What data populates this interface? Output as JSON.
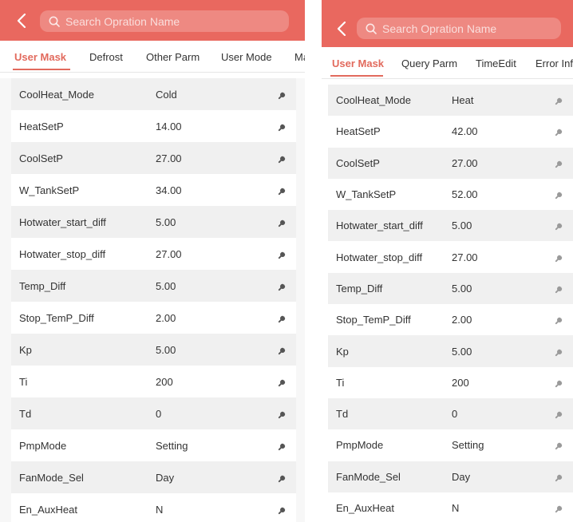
{
  "colors": {
    "header": "#e9685f",
    "accent": "#e26a5d",
    "row_alt": "#f0f0f0"
  },
  "left": {
    "search_placeholder": "Search Opration Name",
    "tabs": [
      {
        "label": "User Mask",
        "active": true
      },
      {
        "label": "Defrost"
      },
      {
        "label": "Other Parm"
      },
      {
        "label": "User Mode"
      },
      {
        "label": "Ma"
      }
    ],
    "rows": [
      {
        "name": "CoolHeat_Mode",
        "value": "Cold"
      },
      {
        "name": "HeatSetP",
        "value": "14.00"
      },
      {
        "name": "CoolSetP",
        "value": "27.00"
      },
      {
        "name": "W_TankSetP",
        "value": "34.00"
      },
      {
        "name": "Hotwater_start_diff",
        "value": "5.00"
      },
      {
        "name": "Hotwater_stop_diff",
        "value": "27.00"
      },
      {
        "name": "Temp_Diff",
        "value": "5.00"
      },
      {
        "name": "Stop_TemP_Diff",
        "value": "2.00"
      },
      {
        "name": "Kp",
        "value": "5.00"
      },
      {
        "name": "Ti",
        "value": "200"
      },
      {
        "name": "Td",
        "value": "0"
      },
      {
        "name": "PmpMode",
        "value": "Setting"
      },
      {
        "name": "FanMode_Sel",
        "value": "Day"
      },
      {
        "name": "En_AuxHeat",
        "value": "N"
      }
    ]
  },
  "right": {
    "search_placeholder": "Search Opration Name",
    "tabs": [
      {
        "label": "User Mask",
        "active": true
      },
      {
        "label": "Query Parm"
      },
      {
        "label": "TimeEdit"
      },
      {
        "label": "Error Info"
      }
    ],
    "rows": [
      {
        "name": "CoolHeat_Mode",
        "value": "Heat"
      },
      {
        "name": "HeatSetP",
        "value": "42.00"
      },
      {
        "name": "CoolSetP",
        "value": "27.00"
      },
      {
        "name": "W_TankSetP",
        "value": "52.00"
      },
      {
        "name": "Hotwater_start_diff",
        "value": "5.00"
      },
      {
        "name": "Hotwater_stop_diff",
        "value": "27.00"
      },
      {
        "name": "Temp_Diff",
        "value": "5.00"
      },
      {
        "name": "Stop_TemP_Diff",
        "value": "2.00"
      },
      {
        "name": "Kp",
        "value": "5.00"
      },
      {
        "name": "Ti",
        "value": "200"
      },
      {
        "name": "Td",
        "value": "0"
      },
      {
        "name": "PmpMode",
        "value": "Setting"
      },
      {
        "name": "FanMode_Sel",
        "value": "Day"
      },
      {
        "name": "En_AuxHeat",
        "value": "N"
      }
    ]
  }
}
